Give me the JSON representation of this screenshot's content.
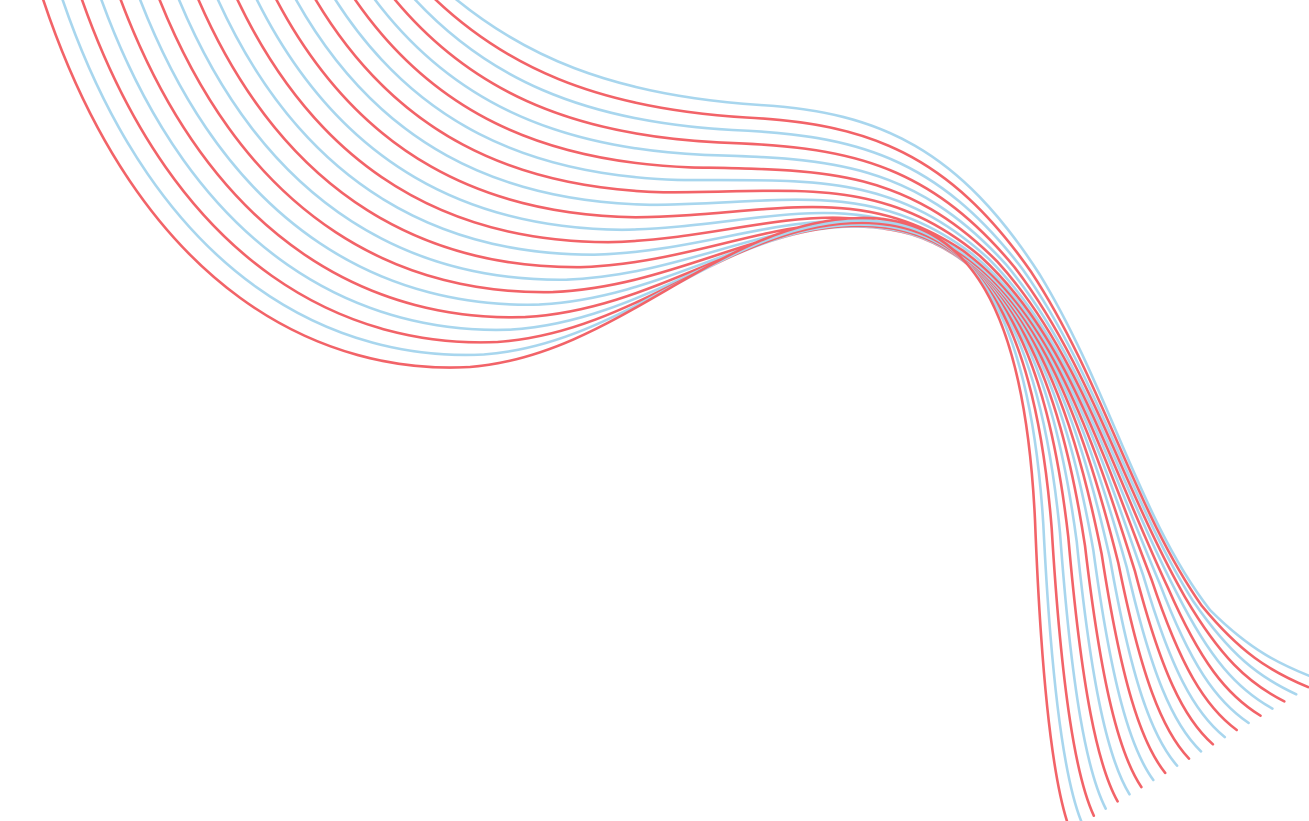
{
  "artwork": {
    "line_count": 22,
    "colors": {
      "background": "#ffffff",
      "line_a": "#f26368",
      "line_b": "#a8d6ee"
    },
    "color_pattern": "alternating"
  }
}
